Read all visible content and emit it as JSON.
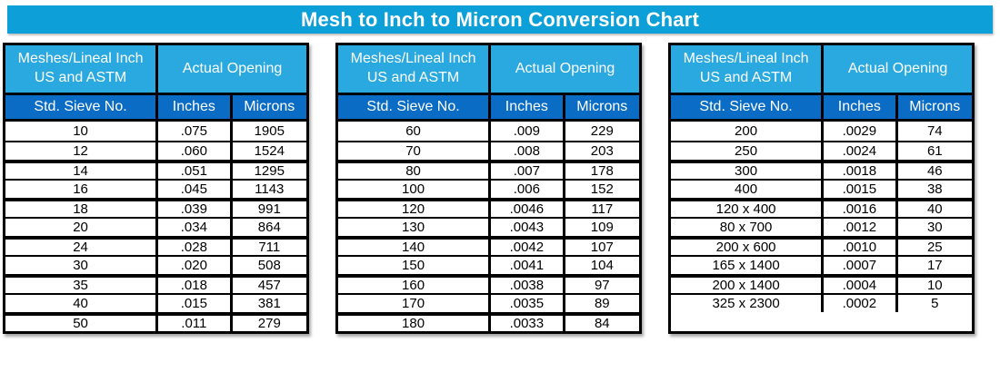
{
  "title": "Mesh to Inch to Micron Conversion Chart",
  "colors": {
    "title_bar": "#0C9FD8",
    "header_light": "#29A9DF",
    "header_dark": "#0A6CC4",
    "border": "#000000",
    "header_text": "#FFFFFF",
    "body_text": "#000000",
    "page_bg": "#FFFFFF"
  },
  "chart_data": {
    "type": "table",
    "title": "Mesh to Inch to Micron Conversion Chart",
    "header": {
      "mesh_col_line1": "Meshes/Lineal Inch",
      "mesh_col_line2": "US and ASTM",
      "opening_group": "Actual Opening",
      "columns": [
        "Std. Sieve No.",
        "Inches",
        "Microns"
      ]
    },
    "tables": [
      {
        "rows": [
          [
            "10",
            ".075",
            "1905"
          ],
          [
            "12",
            ".060",
            "1524"
          ],
          [
            "14",
            ".051",
            "1295"
          ],
          [
            "16",
            ".045",
            "1143"
          ],
          [
            "18",
            ".039",
            "991"
          ],
          [
            "20",
            ".034",
            "864"
          ],
          [
            "24",
            ".028",
            "711"
          ],
          [
            "30",
            ".020",
            "508"
          ],
          [
            "35",
            ".018",
            "457"
          ],
          [
            "40",
            ".015",
            "381"
          ],
          [
            "50",
            ".011",
            "279"
          ]
        ]
      },
      {
        "rows": [
          [
            "60",
            ".009",
            "229"
          ],
          [
            "70",
            ".008",
            "203"
          ],
          [
            "80",
            ".007",
            "178"
          ],
          [
            "100",
            ".006",
            "152"
          ],
          [
            "120",
            ".0046",
            "117"
          ],
          [
            "130",
            ".0043",
            "109"
          ],
          [
            "140",
            ".0042",
            "107"
          ],
          [
            "150",
            ".0041",
            "104"
          ],
          [
            "160",
            ".0038",
            "97"
          ],
          [
            "170",
            ".0035",
            "89"
          ],
          [
            "180",
            ".0033",
            "84"
          ]
        ]
      },
      {
        "rows": [
          [
            "200",
            ".0029",
            "74"
          ],
          [
            "250",
            ".0024",
            "61"
          ],
          [
            "300",
            ".0018",
            "46"
          ],
          [
            "400",
            ".0015",
            "38"
          ],
          [
            "120 x 400",
            ".0016",
            "40"
          ],
          [
            "80 x 700",
            ".0012",
            "30"
          ],
          [
            "200 x 600",
            ".0010",
            "25"
          ],
          [
            "165 x 1400",
            ".0007",
            "17"
          ],
          [
            "200 x 1400",
            ".0004",
            "10"
          ],
          [
            "325 x 2300",
            ".0002",
            "5"
          ]
        ]
      }
    ]
  }
}
